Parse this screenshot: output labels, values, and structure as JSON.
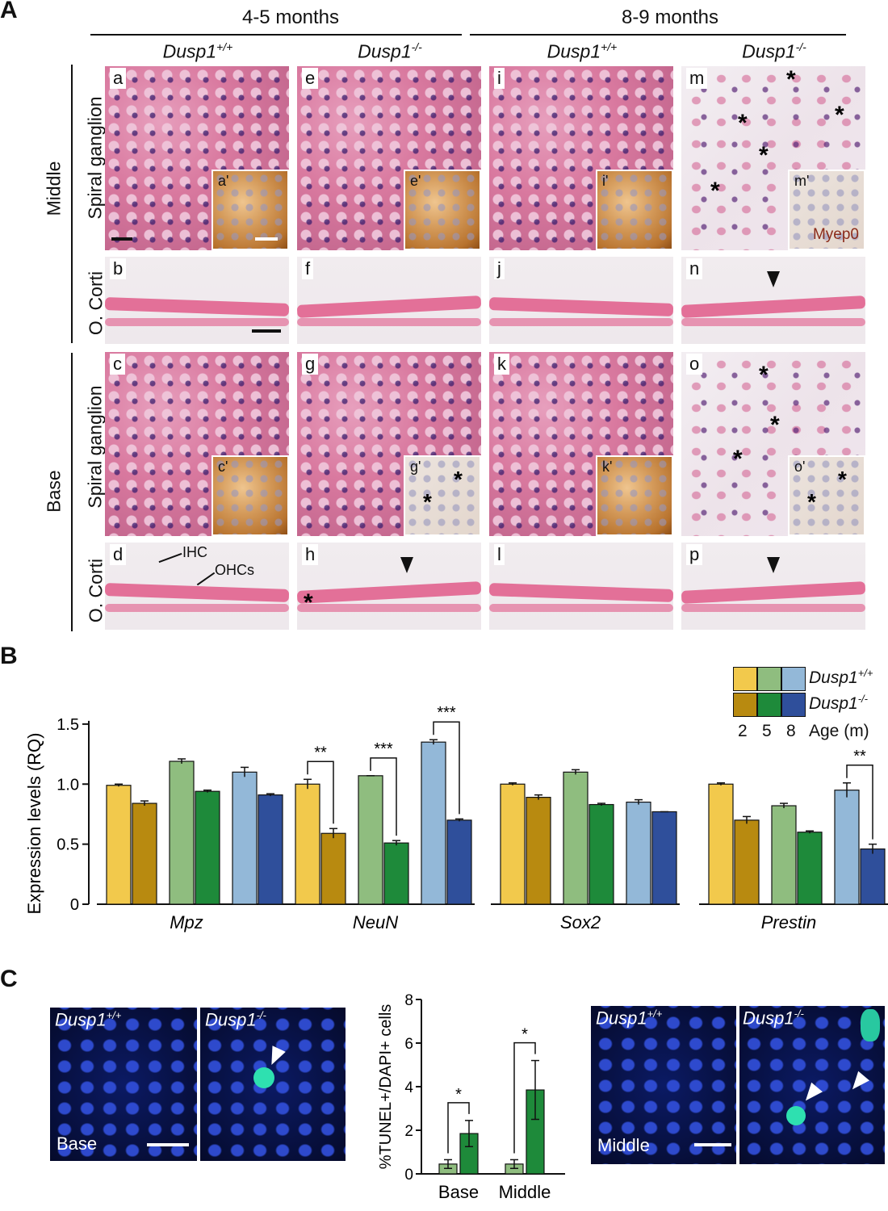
{
  "panelA": {
    "letter": "A",
    "age_headers": [
      "4-5 months",
      "8-9 months"
    ],
    "genotypes": [
      "Dusp1+/+",
      "Dusp1-/-",
      "Dusp1+/+",
      "Dusp1-/-"
    ],
    "genotype_parts": [
      {
        "base": "Dusp1",
        "sup": "+/+"
      },
      {
        "base": "Dusp1",
        "sup": "-/-"
      },
      {
        "base": "Dusp1",
        "sup": "+/+"
      },
      {
        "base": "Dusp1",
        "sup": "-/-"
      }
    ],
    "region_labels": [
      "Middle",
      "Base"
    ],
    "row_labels": [
      "Spiral ganglion",
      "O. Corti",
      "Spiral ganglion",
      "O. Corti"
    ],
    "tile_letters": [
      [
        "a",
        "e",
        "i",
        "m"
      ],
      [
        "b",
        "f",
        "j",
        "n"
      ],
      [
        "c",
        "g",
        "k",
        "o"
      ],
      [
        "d",
        "h",
        "l",
        "p"
      ]
    ],
    "inset_letters": [
      [
        "a'",
        "e'",
        "i'",
        "m'"
      ],
      [
        "c'",
        "g'",
        "k'",
        "o'"
      ]
    ],
    "inset_stain_label": "Myep0",
    "annotations": {
      "ihc": "IHC",
      "ohcs": "OHCs"
    }
  },
  "panelB": {
    "letter": "B",
    "legend": {
      "genotypes": [
        "Dusp1+/+",
        "Dusp1-/-"
      ],
      "genotype_parts": [
        {
          "base": "Dusp1",
          "sup": "+/+"
        },
        {
          "base": "Dusp1",
          "sup": "-/-"
        }
      ],
      "ages": [
        "2",
        "5",
        "8"
      ],
      "age_label": "Age (m)"
    },
    "colors": {
      "wt": [
        "#f2c94c",
        "#8fbd7f",
        "#93b8d8"
      ],
      "ko": [
        "#b88a10",
        "#1e8a3a",
        "#2f4f9b"
      ]
    },
    "chart_data": {
      "type": "bar",
      "categories": [
        "Mpz",
        "NeuN",
        "Sox2",
        "Prestin"
      ],
      "ylabel": "Expression levels (RQ)",
      "ylim": [
        0,
        1.6
      ],
      "yticks": [
        "0",
        "0.5",
        "1.0",
        "1.5"
      ],
      "ytick_values": [
        0,
        0.5,
        1.0,
        1.5
      ],
      "series": [
        {
          "genotype": "Dusp1+/+",
          "age": "2",
          "values": [
            0.99,
            1.0,
            1.0,
            1.0
          ],
          "err": [
            0.01,
            0.04,
            0.01,
            0.01
          ]
        },
        {
          "genotype": "Dusp1-/-",
          "age": "2",
          "values": [
            0.84,
            0.59,
            0.89,
            0.7
          ],
          "err": [
            0.02,
            0.04,
            0.02,
            0.03
          ]
        },
        {
          "genotype": "Dusp1+/+",
          "age": "5",
          "values": [
            1.19,
            1.07,
            1.1,
            0.82
          ],
          "err": [
            0.02,
            0.0,
            0.02,
            0.02
          ]
        },
        {
          "genotype": "Dusp1-/-",
          "age": "5",
          "values": [
            0.94,
            0.51,
            0.83,
            0.6
          ],
          "err": [
            0.01,
            0.02,
            0.01,
            0.01
          ]
        },
        {
          "genotype": "Dusp1+/+",
          "age": "8",
          "values": [
            1.1,
            1.35,
            0.85,
            0.95
          ],
          "err": [
            0.04,
            0.02,
            0.02,
            0.06
          ]
        },
        {
          "genotype": "Dusp1-/-",
          "age": "8",
          "values": [
            0.91,
            0.7,
            0.77,
            0.46
          ],
          "err": [
            0.01,
            0.01,
            0.0,
            0.04
          ]
        }
      ],
      "significance": [
        {
          "category": "NeuN",
          "age": "2",
          "label": "**"
        },
        {
          "category": "NeuN",
          "age": "5",
          "label": "***"
        },
        {
          "category": "NeuN",
          "age": "8",
          "label": "***"
        },
        {
          "category": "Prestin",
          "age": "8",
          "label": "**"
        }
      ]
    }
  },
  "panelC": {
    "letter": "C",
    "image_labels": {
      "left": {
        "wt": "Dusp1+/+",
        "ko": "Dusp1-/-",
        "region": "Base"
      },
      "right": {
        "wt": "Dusp1+/+",
        "ko": "Dusp1-/-",
        "region": "Middle"
      }
    },
    "colors": {
      "wt": "#8fbd7f",
      "ko": "#1e8a3a"
    },
    "chart_data": {
      "type": "bar",
      "categories": [
        "Base",
        "Middle"
      ],
      "ylabel": "%TUNEL+/DAPI+ cells",
      "ylim": [
        0,
        8
      ],
      "yticks": [
        "0",
        "2",
        "4",
        "6",
        "8"
      ],
      "ytick_values": [
        0,
        2,
        4,
        6,
        8
      ],
      "series": [
        {
          "genotype": "Dusp1+/+",
          "values": [
            0.45,
            0.45
          ],
          "err": [
            0.2,
            0.2
          ]
        },
        {
          "genotype": "Dusp1-/-",
          "values": [
            1.85,
            3.85
          ],
          "err": [
            0.6,
            1.35
          ]
        }
      ],
      "significance": [
        "*",
        "*"
      ]
    }
  }
}
